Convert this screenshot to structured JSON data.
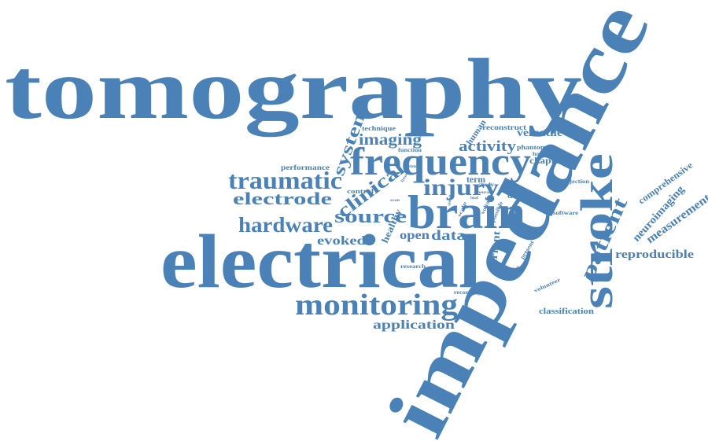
{
  "color": "#4a82b8",
  "words": {
    "tomography": "tomography",
    "impedance": "impedance",
    "electrical": "electrical",
    "brain": "brain",
    "frequency": "frequency",
    "stroke": "stroke",
    "monitoring": "monitoring",
    "traumatic": "traumatic",
    "injury": "injury",
    "hardware": "hardware",
    "source": "source",
    "clinical": "clinical",
    "patient": "patient",
    "electrode": "electrode",
    "system": "system",
    "imaging": "imaging",
    "activity": "activity",
    "application": "application",
    "data": "data",
    "open": "open",
    "evoked": "evoked",
    "reproducible": "reproducible",
    "measurement": "measurement",
    "neuroimaging": "neuroimaging",
    "comprehensive": "comprehensive",
    "versatile": "versatile",
    "chapter": "chapter",
    "current": "current",
    "classification": "classification",
    "healthy": "healthy",
    "term": "term",
    "dataset": "dataset",
    "human": "human",
    "reconstruct": "reconstruct",
    "technique": "technique",
    "performance": "performance",
    "phantom": "phantom",
    "control": "control",
    "function": "function",
    "hospital": "hospital",
    "injection": "injection",
    "software": "software",
    "research": "research",
    "recording": "recording",
    "volunteer": "volunteer",
    "method": "method",
    "present": "present",
    "voltage": "voltage",
    "possible": "possible",
    "study": "study",
    "scalp": "scalp",
    "future": "future",
    "stable": "stable",
    "small": "small",
    "neural": "neural",
    "lead": "lead",
    "time": "time",
    "scan": "scan"
  }
}
